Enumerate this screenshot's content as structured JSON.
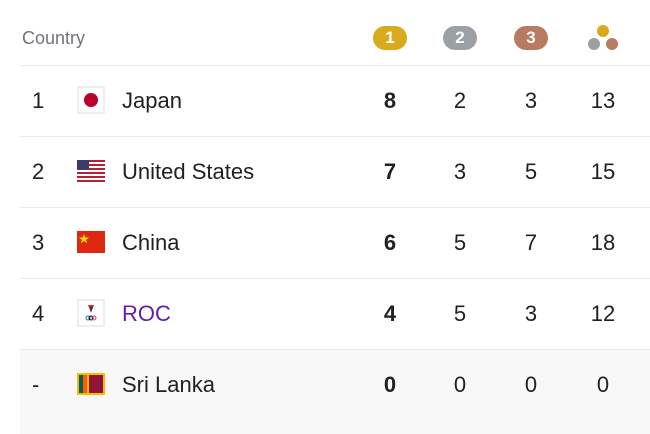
{
  "header": {
    "country": "Country",
    "medals": [
      "1",
      "2",
      "3"
    ]
  },
  "rows": [
    {
      "rank": "1",
      "country": "Japan",
      "gold": "8",
      "silver": "2",
      "bronze": "3",
      "total": "13"
    },
    {
      "rank": "2",
      "country": "United States",
      "gold": "7",
      "silver": "3",
      "bronze": "5",
      "total": "15"
    },
    {
      "rank": "3",
      "country": "China",
      "gold": "6",
      "silver": "5",
      "bronze": "7",
      "total": "18"
    },
    {
      "rank": "4",
      "country": "ROC",
      "gold": "4",
      "silver": "5",
      "bronze": "3",
      "total": "12"
    },
    {
      "rank": "-",
      "country": "Sri Lanka",
      "gold": "0",
      "silver": "0",
      "bronze": "0",
      "total": "0"
    }
  ]
}
